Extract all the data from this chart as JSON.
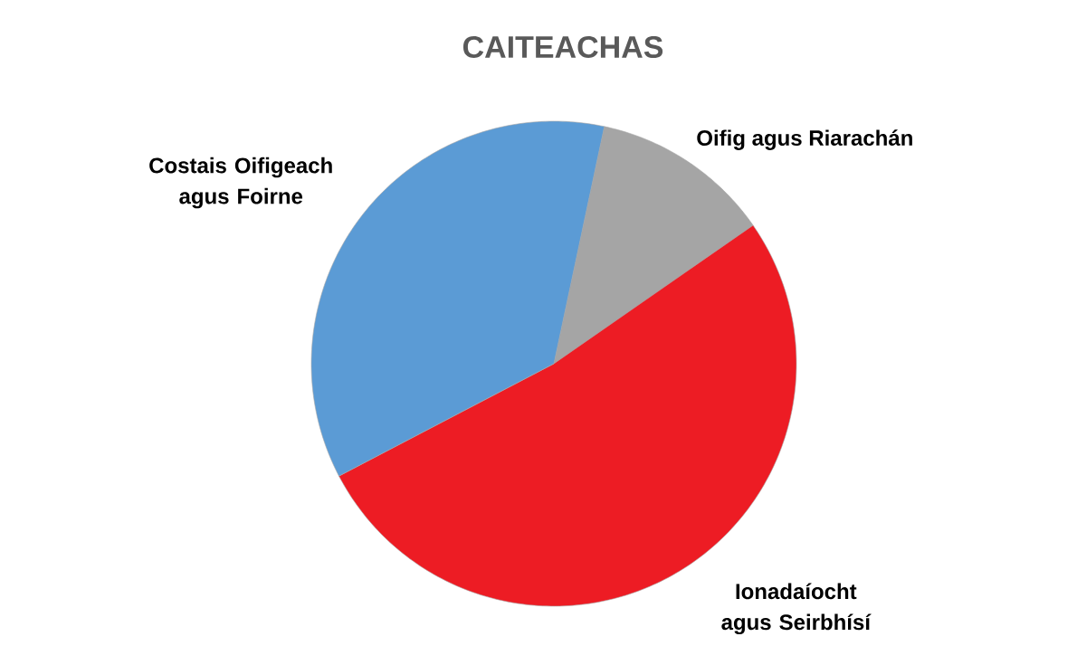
{
  "chart_data": {
    "type": "pie",
    "title": "CAITEACHAS",
    "categories": [
      "Oifig agus Riarachán",
      "Ionadaíocht agus Seirbhísí",
      "Costais Oifigeach agus Foirne"
    ],
    "values": [
      12,
      52,
      36
    ],
    "colors": [
      "#a5a5a5",
      "#ed1c24",
      "#5b9bd5"
    ]
  }
}
